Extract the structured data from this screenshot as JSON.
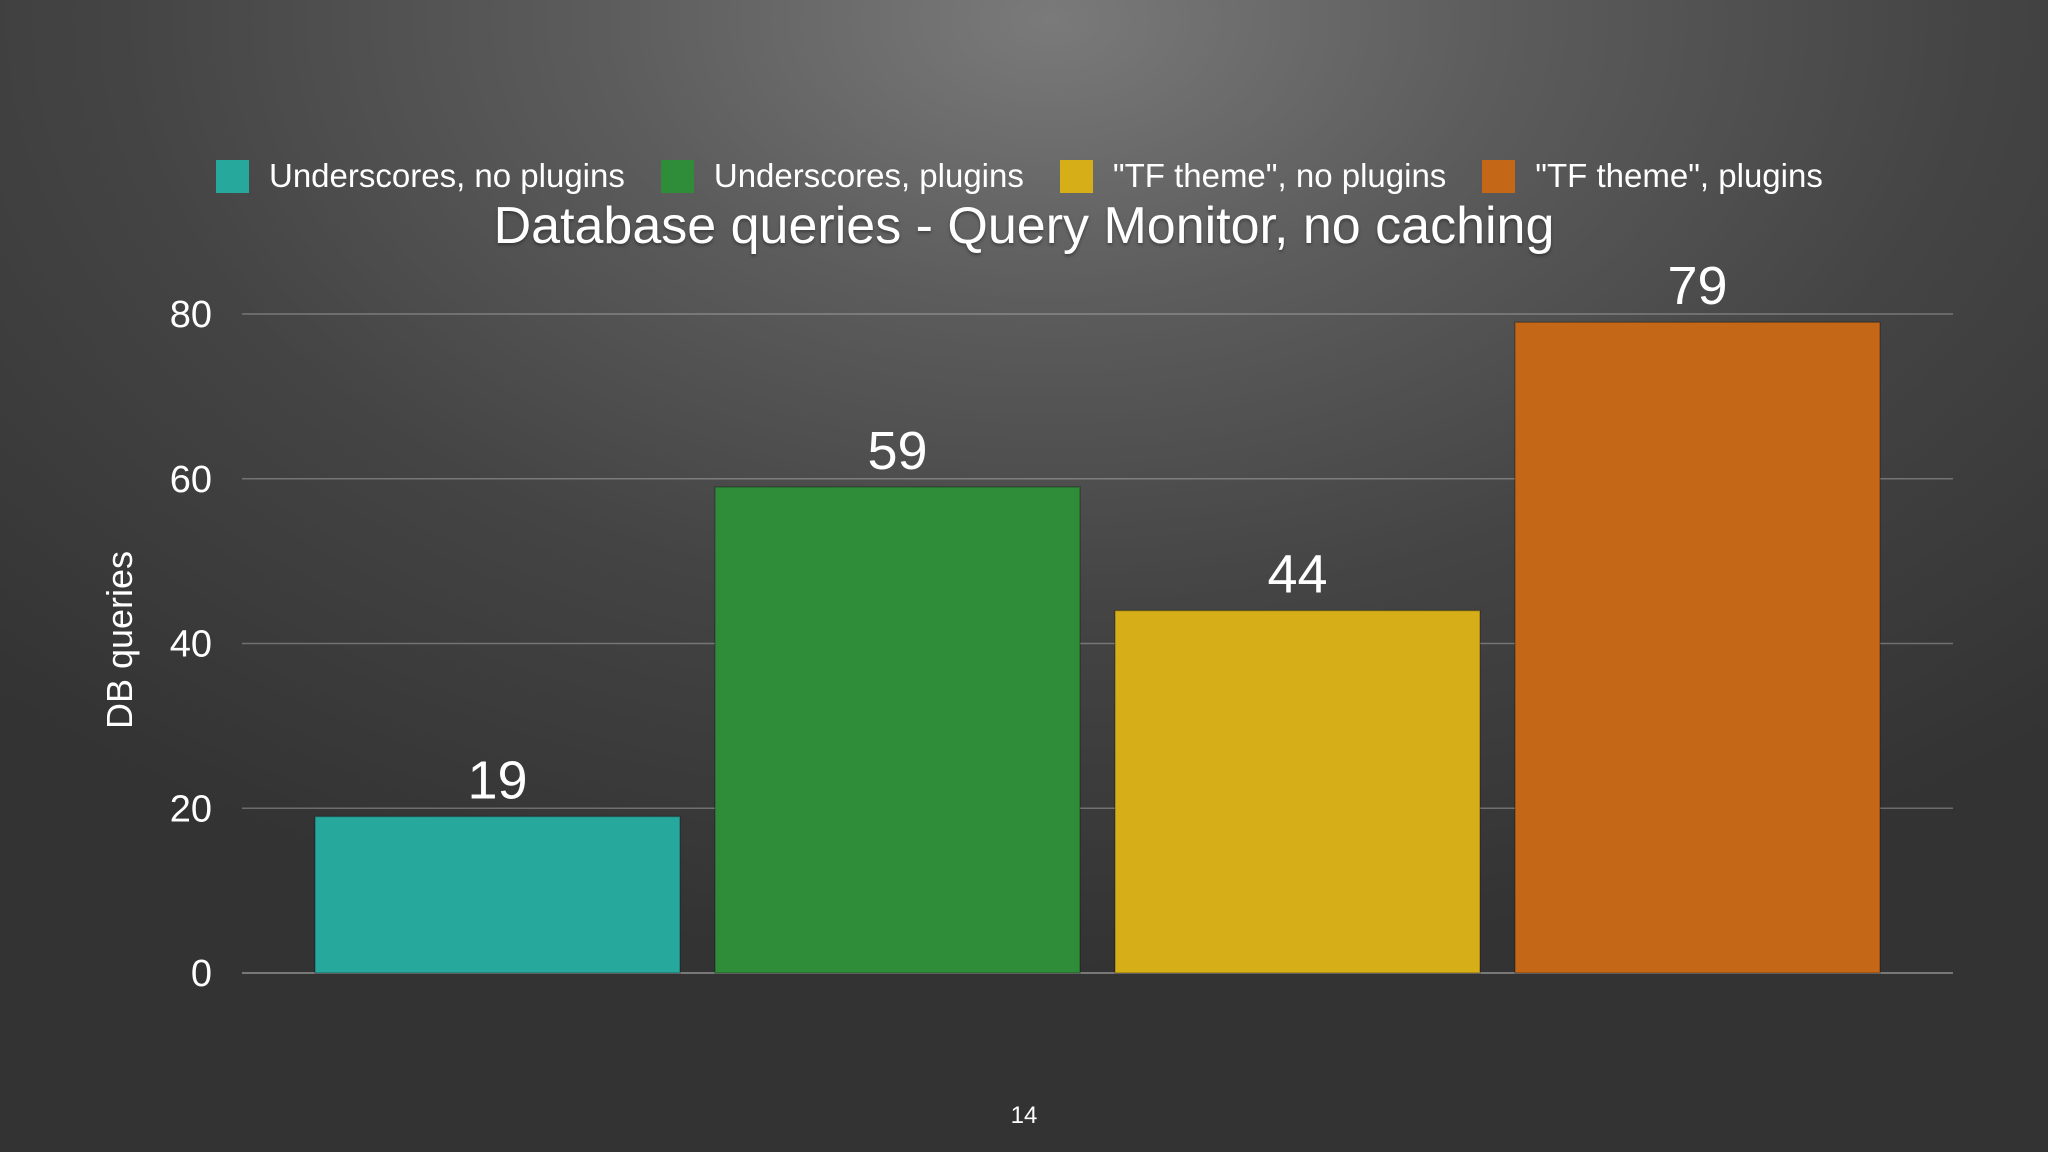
{
  "slide": {
    "page_number": "14"
  },
  "chart_data": {
    "type": "bar",
    "title": "Database queries - Query Monitor, no caching",
    "xlabel": "",
    "ylabel": "DB queries",
    "ylim": [
      0,
      80
    ],
    "yticks": [
      0,
      20,
      40,
      60,
      80
    ],
    "grid": true,
    "legend_position": "top",
    "series": [
      {
        "name": "Underscores, no plugins",
        "value": 19,
        "label": "19",
        "color": "#27a89d"
      },
      {
        "name": "Underscores, plugins",
        "value": 59,
        "label": "59",
        "color": "#2f8d3a"
      },
      {
        "name": "\"TF theme\", no plugins",
        "value": 44,
        "label": "44",
        "color": "#d6ae18"
      },
      {
        "name": "\"TF theme\", plugins",
        "value": 79,
        "label": "79",
        "color": "#c46818"
      }
    ]
  }
}
